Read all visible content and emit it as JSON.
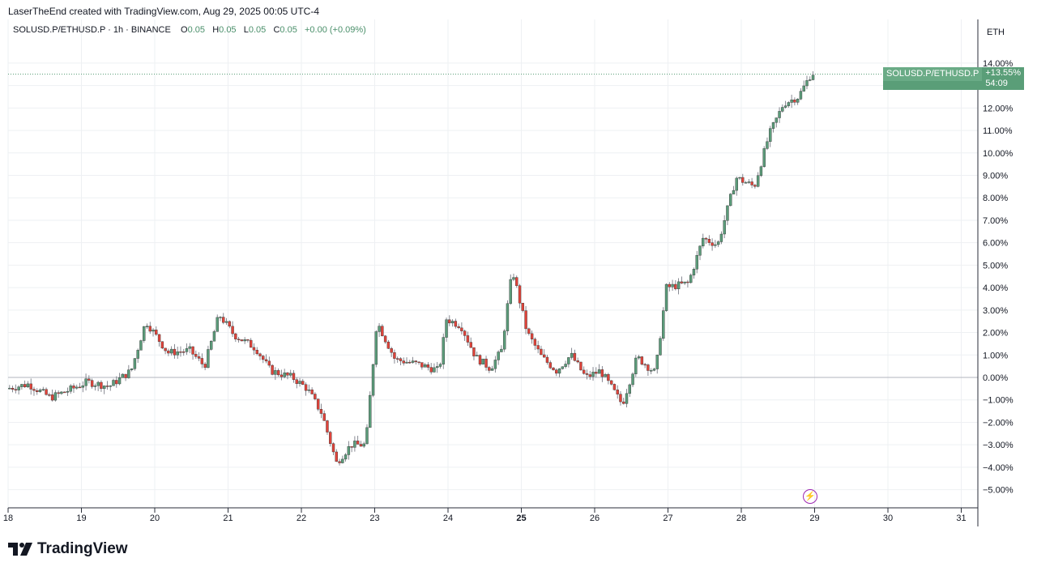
{
  "header": {
    "created_text": "LaserTheEnd created with TradingView.com, Aug 29, 2025 00:05 UTC-4"
  },
  "legend": {
    "symbol_line": "SOLUSD.P/ETHUSD.P · 1h · BINANCE",
    "open_label": "O",
    "open_value": "0.05",
    "high_label": "H",
    "high_value": "0.05",
    "low_label": "L",
    "low_value": "0.05",
    "close_label": "C",
    "close_value": "0.05",
    "change_value": "+0.00 (+0.09%)"
  },
  "price_tag": {
    "symbol": "SOLUSD.P/ETHUSD.P",
    "value": "+13.55%",
    "countdown": "54:09"
  },
  "axis_currency": "ETH",
  "branding": {
    "logo_text": "TradingView"
  },
  "colors": {
    "up": "#5b9c7a",
    "down": "#e0433a",
    "tag": "#5a9e78",
    "grid": "#eef0f3",
    "event": "#9c27b0"
  },
  "chart_data": {
    "type": "candlestick",
    "y_unit": "percent",
    "ylim": [
      -5.8,
      14.3
    ],
    "y_ticks": [
      14,
      13,
      12,
      11,
      10,
      9,
      8,
      7,
      6,
      5,
      4,
      3,
      2,
      1,
      0,
      -1,
      -2,
      -3,
      -4,
      -5
    ],
    "y_tick_labels": [
      "14.00%",
      "13.00%",
      "12.00%",
      "11.00%",
      "10.00%",
      "9.00%",
      "8.00%",
      "7.00%",
      "6.00%",
      "5.00%",
      "4.00%",
      "3.00%",
      "2.00%",
      "1.00%",
      "0.00%",
      "−1.00%",
      "−2.00%",
      "−3.00%",
      "−4.00%",
      "−5.00%"
    ],
    "x_ticks": [
      "18",
      "19",
      "20",
      "21",
      "22",
      "23",
      "24",
      "25",
      "26",
      "27",
      "28",
      "29",
      "30",
      "31"
    ],
    "x_bold_tick": "25",
    "baseline": 0,
    "last_value": 13.55,
    "path_keypoints_day_pct": [
      [
        18.0,
        -0.5
      ],
      [
        18.3,
        -0.3
      ],
      [
        18.6,
        -0.9
      ],
      [
        18.9,
        -0.5
      ],
      [
        19.1,
        -0.2
      ],
      [
        19.4,
        -0.4
      ],
      [
        19.7,
        0.3
      ],
      [
        19.9,
        2.5
      ],
      [
        20.2,
        1.1
      ],
      [
        20.5,
        1.2
      ],
      [
        20.7,
        0.5
      ],
      [
        20.9,
        2.8
      ],
      [
        21.1,
        1.9
      ],
      [
        21.4,
        1.3
      ],
      [
        21.6,
        0.3
      ],
      [
        21.9,
        0.0
      ],
      [
        22.1,
        -0.5
      ],
      [
        22.3,
        -1.6
      ],
      [
        22.5,
        -3.8
      ],
      [
        22.7,
        -3.0
      ],
      [
        22.9,
        -3.0
      ],
      [
        23.05,
        2.5
      ],
      [
        23.3,
        0.8
      ],
      [
        23.6,
        0.6
      ],
      [
        23.9,
        0.3
      ],
      [
        24.0,
        2.6
      ],
      [
        24.2,
        2.3
      ],
      [
        24.4,
        0.9
      ],
      [
        24.6,
        0.4
      ],
      [
        24.75,
        1.2
      ],
      [
        24.9,
        4.8
      ],
      [
        25.1,
        2.0
      ],
      [
        25.3,
        0.9
      ],
      [
        25.5,
        0.3
      ],
      [
        25.7,
        1.0
      ],
      [
        25.9,
        0.0
      ],
      [
        26.1,
        0.3
      ],
      [
        26.4,
        -1.2
      ],
      [
        26.6,
        0.9
      ],
      [
        26.85,
        0.2
      ],
      [
        27.0,
        4.0
      ],
      [
        27.3,
        4.2
      ],
      [
        27.5,
        6.2
      ],
      [
        27.7,
        5.9
      ],
      [
        27.95,
        8.9
      ],
      [
        28.2,
        8.5
      ],
      [
        28.4,
        10.8
      ],
      [
        28.6,
        12.2
      ],
      [
        28.8,
        12.5
      ],
      [
        28.98,
        13.55
      ]
    ]
  }
}
